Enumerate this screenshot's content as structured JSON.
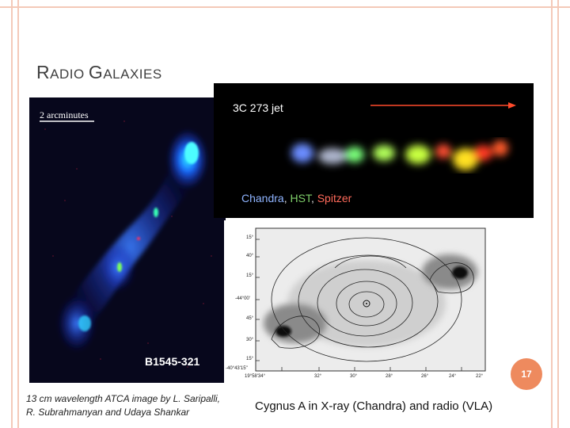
{
  "slide": {
    "title_first_cap": "R",
    "title_rest_1": "ADIO ",
    "title_second_cap": "G",
    "title_rest_2": "ALAXIES",
    "page_number": "17"
  },
  "radio_image": {
    "scale_label": "2 arcminutes",
    "source_label": "B1545-321",
    "caption_line1": "13 cm wavelength ATCA image by L. Saripalli,",
    "caption_line2": "R. Subrahmanyan and Udaya Shankar"
  },
  "jet_image": {
    "label": "3C 273 jet",
    "credit_1": "Chandra",
    "sep_1": ", ",
    "credit_2": "HST",
    "sep_2": ", ",
    "credit_3": "Spitzer"
  },
  "cygnus_image": {
    "caption": "Cygnus A in X-ray (Chandra) and radio (VLA)",
    "dec_labels": [
      "15°",
      "40°",
      "15°",
      "-44°00'",
      "45°",
      "30°",
      "15°",
      "-40°43'15\""
    ],
    "ra_labels": [
      "19°58'34°",
      "32°",
      "30°",
      "28°",
      "26°",
      "24°",
      "22°"
    ]
  },
  "colors": {
    "border": "#f4c9b8",
    "badge": "#ee8a5e",
    "title": "#404040"
  }
}
